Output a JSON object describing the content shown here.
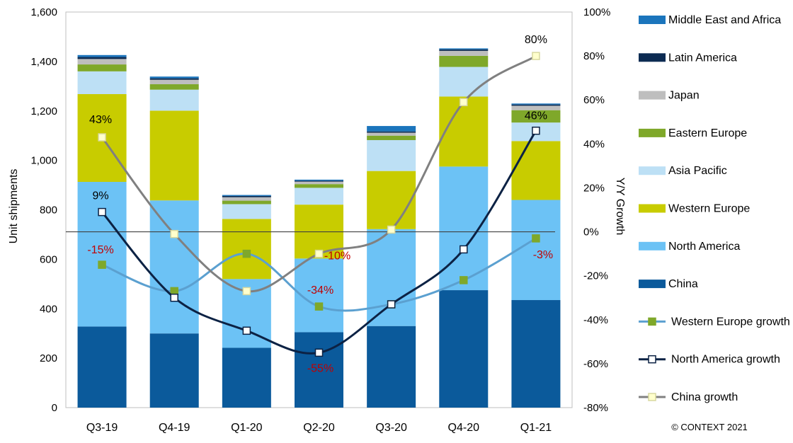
{
  "chart_data": {
    "type": "bar",
    "stacked": true,
    "categories": [
      "Q3-19",
      "Q4-19",
      "Q1-20",
      "Q2-20",
      "Q3-20",
      "Q4-20",
      "Q1-21"
    ],
    "y_left": {
      "label": "Unit shipments",
      "range": [
        0,
        1600
      ],
      "ticks": [
        "0",
        "200",
        "400",
        "600",
        "800",
        "1,000",
        "1,200",
        "1,400",
        "1,600"
      ]
    },
    "y_right": {
      "label": "Y/Y Growth",
      "range": [
        -80,
        100
      ],
      "ticks": [
        "-80%",
        "-60%",
        "-40%",
        "-20%",
        "0%",
        "20%",
        "40%",
        "60%",
        "80%",
        "100%"
      ]
    },
    "grid": false,
    "legend_position": "right",
    "series": [
      {
        "name": "China",
        "color": "#0B5A9B",
        "values": [
          328,
          300,
          242,
          305,
          330,
          475,
          435
        ]
      },
      {
        "name": "North America",
        "color": "#6CC2F5",
        "values": [
          585,
          538,
          278,
          298,
          392,
          500,
          405
        ]
      },
      {
        "name": "Western Europe",
        "color": "#C8CC00",
        "values": [
          355,
          363,
          243,
          218,
          235,
          283,
          238
        ]
      },
      {
        "name": "Asia Pacific",
        "color": "#BDE0F5",
        "values": [
          92,
          85,
          60,
          68,
          125,
          120,
          75
        ]
      },
      {
        "name": "Eastern Europe",
        "color": "#7FA82A",
        "values": [
          28,
          22,
          14,
          15,
          18,
          45,
          50
        ]
      },
      {
        "name": "Japan",
        "color": "#BEBEBE",
        "values": [
          22,
          18,
          14,
          10,
          12,
          20,
          18
        ]
      },
      {
        "name": "Latin America",
        "color": "#0C2B52",
        "values": [
          8,
          6,
          5,
          4,
          5,
          6,
          5
        ]
      },
      {
        "name": "Middle East and Africa",
        "color": "#1B75BC",
        "values": [
          8,
          7,
          4,
          4,
          22,
          4,
          4
        ]
      }
    ],
    "line_series": [
      {
        "name": "Western Europe growth",
        "color": "#5BA0D0",
        "marker_color": "#7FA82A",
        "values": [
          -15,
          -27,
          -10,
          -34,
          -33,
          -22,
          -3
        ]
      },
      {
        "name": "North America growth",
        "color": "#0C2244",
        "marker_color": "#ffffff",
        "values": [
          9,
          -30,
          -45,
          -55,
          -33,
          -8,
          46
        ]
      },
      {
        "name": "China growth",
        "color": "#808080",
        "marker_color": "#FFFFCC",
        "values": [
          43,
          -1,
          -27,
          -10,
          1,
          59,
          80
        ]
      }
    ],
    "legend_order": [
      "Middle East and Africa",
      "Latin America",
      "Japan",
      "Eastern Europe",
      "Asia Pacific",
      "Western Europe",
      "North America",
      "China",
      "Western Europe growth",
      "North America growth",
      "China growth"
    ],
    "annotations": [
      {
        "text": "43%",
        "category": "Q3-19",
        "value": 43,
        "axis": "right",
        "color": "#000000"
      },
      {
        "text": "9%",
        "category": "Q3-19",
        "value": 9,
        "axis": "right",
        "color": "#000000"
      },
      {
        "text": "-15%",
        "category": "Q3-19",
        "value": -15,
        "axis": "right",
        "color": "#C00000"
      },
      {
        "text": "-10%",
        "category": "Q2-20",
        "value": -10,
        "axis": "right",
        "color": "#C00000"
      },
      {
        "text": "-34%",
        "category": "Q2-20",
        "value": -34,
        "axis": "right",
        "color": "#C00000"
      },
      {
        "text": "-55%",
        "category": "Q2-20",
        "value": -55,
        "axis": "right",
        "color": "#C00000"
      },
      {
        "text": "80%",
        "category": "Q1-21",
        "value": 80,
        "axis": "right",
        "color": "#000000"
      },
      {
        "text": "46%",
        "category": "Q1-21",
        "value": 46,
        "axis": "right",
        "color": "#000000"
      },
      {
        "text": "-3%",
        "category": "Q1-21",
        "value": -3,
        "axis": "right",
        "color": "#C00000"
      }
    ],
    "copyright": "© CONTEXT 2021"
  }
}
